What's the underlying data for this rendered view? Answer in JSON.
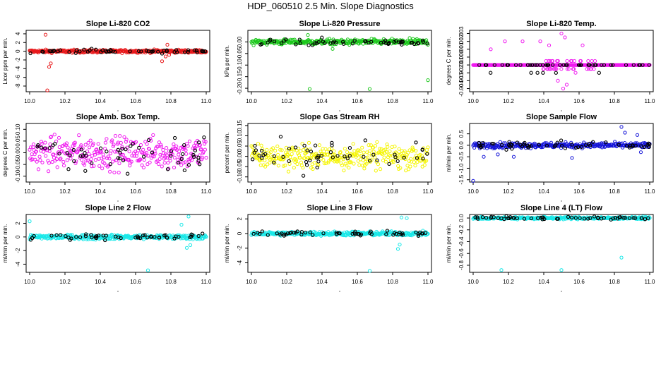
{
  "figure": {
    "title": "HDP_060510  2.5 Min. Slope Diagnostics"
  },
  "colors": {
    "ref": "#000000"
  },
  "chart_data": [
    {
      "id": "co2",
      "type": "scatter",
      "title": "Slope Li-820 CO2",
      "ylabel": "Licor ppm per min.",
      "color": "#e8191b",
      "xlim": [
        9.98,
        11.02
      ],
      "ylim": [
        -9.3,
        4.8
      ],
      "xticks": [
        "10.0",
        "10.2",
        "10.4",
        "10.6",
        "10.8",
        "11.0"
      ],
      "yticks": [
        {
          "v": 4,
          "label": "4"
        },
        {
          "v": 2,
          "label": "2"
        },
        {
          "v": 0,
          "label": "0"
        },
        {
          "v": -2,
          "label": "-2"
        },
        {
          "v": -4,
          "label": "-4"
        },
        {
          "v": -6,
          "label": "-6"
        },
        {
          "v": -8,
          "label": "-8"
        }
      ],
      "band_center": 0.0,
      "band_spread": 0.35,
      "outliers": [
        [
          10.09,
          3.8
        ],
        [
          10.1,
          -9.0
        ],
        [
          10.11,
          -3.6
        ],
        [
          10.12,
          -2.8
        ],
        [
          10.75,
          -2.3
        ],
        [
          10.77,
          -1.2
        ],
        [
          10.78,
          1.5
        ],
        [
          10.79,
          -0.8
        ]
      ]
    },
    {
      "id": "pressure",
      "type": "scatter",
      "title": "Slope Li-820 Pressure",
      "ylabel": "kPa per min.",
      "color": "#1dc81d",
      "xlim": [
        9.98,
        11.02
      ],
      "ylim": [
        -0.215,
        0.05
      ],
      "xticks": [
        "10.0",
        "10.2",
        "10.4",
        "10.6",
        "10.8",
        "11.0"
      ],
      "yticks": [
        {
          "v": 0,
          "label": "0.00"
        },
        {
          "v": -0.05,
          "label": "-0.05"
        },
        {
          "v": -0.1,
          "label": "-0.10"
        },
        {
          "v": -0.15,
          "label": "-0.15"
        },
        {
          "v": -0.2,
          "label": "-0.20"
        }
      ],
      "band_center": 0.0,
      "band_spread": 0.012,
      "outliers": [
        [
          10.33,
          -0.203
        ],
        [
          10.67,
          -0.203
        ],
        [
          11.0,
          -0.165
        ],
        [
          10.32,
          0.03
        ],
        [
          10.46,
          -0.03
        ]
      ]
    },
    {
      "id": "temp",
      "type": "scatter",
      "title": "Slope Li-820 Temp.",
      "ylabel": "degrees C per min.",
      "color": "#f019f0",
      "xlim": [
        9.98,
        11.02
      ],
      "ylim": [
        -0.0044,
        0.0034
      ],
      "xticks": [
        "10.0",
        "10.2",
        "10.4",
        "10.6",
        "10.8",
        "11.0"
      ],
      "yticks": [
        {
          "v": 0.003,
          "label": "0.003"
        },
        {
          "v": 0.002,
          "label": "0.002"
        },
        {
          "v": 0.001,
          "label": "0.001"
        },
        {
          "v": 0,
          "label": "0.000"
        },
        {
          "v": -0.001,
          "label": "-0.001"
        },
        {
          "v": -0.002,
          "label": "-0.002"
        },
        {
          "v": -0.003,
          "label": "-0.003"
        },
        {
          "v": -0.004,
          "label": "-0.004"
        }
      ],
      "band_center": -0.001,
      "band_spread": 0.0,
      "quantized_step": 0.0005,
      "outliers": [
        [
          10.1,
          0.001
        ],
        [
          10.18,
          0.002
        ],
        [
          10.28,
          0.002
        ],
        [
          10.38,
          0.002
        ],
        [
          10.43,
          0.0015
        ],
        [
          10.5,
          0.003
        ],
        [
          10.51,
          -0.004
        ],
        [
          10.52,
          0.0025
        ],
        [
          10.48,
          -0.003
        ],
        [
          10.53,
          -0.0035
        ],
        [
          10.58,
          -0.002
        ],
        [
          10.62,
          0.0015
        ]
      ]
    },
    {
      "id": "ambbox",
      "type": "scatter",
      "title": "Slope Amb. Box Temp.",
      "ylabel": "degrees C per min.",
      "color": "#f019f0",
      "xlim": [
        9.98,
        11.02
      ],
      "ylim": [
        -0.125,
        0.125
      ],
      "xticks": [
        "10.0",
        "10.2",
        "10.4",
        "10.6",
        "10.8",
        "11.0"
      ],
      "yticks": [
        {
          "v": 0.1,
          "label": "0.10"
        },
        {
          "v": 0.05,
          "label": "0.05"
        },
        {
          "v": 0,
          "label": "0.00"
        },
        {
          "v": -0.05,
          "label": "-0.05"
        },
        {
          "v": -0.1,
          "label": "-0.10"
        }
      ],
      "band_center": 0.0,
      "band_spread": 0.07,
      "outliers": []
    },
    {
      "id": "rh",
      "type": "scatter",
      "title": "Slope Gas Stream RH",
      "ylabel": "percent per min.",
      "color": "#f5f500",
      "xlim": [
        9.98,
        11.02
      ],
      "ylim": [
        -0.125,
        0.16
      ],
      "xticks": [
        "10.0",
        "10.2",
        "10.4",
        "10.6",
        "10.8",
        "11.0"
      ],
      "yticks": [
        {
          "v": 0.15,
          "label": "0.15"
        },
        {
          "v": 0.1,
          "label": "0.10"
        },
        {
          "v": 0.05,
          "label": "0.05"
        },
        {
          "v": 0,
          "label": "0.00"
        },
        {
          "v": -0.05,
          "label": "-0.05"
        },
        {
          "v": -0.1,
          "label": "-0.10"
        }
      ],
      "band_center": 0.0,
      "band_spread": 0.06,
      "outliers": []
    },
    {
      "id": "sampleflow",
      "type": "scatter",
      "title": "Slope Sample Flow",
      "ylabel": "ml/min per min.",
      "color": "#1515d8",
      "xlim": [
        9.98,
        11.02
      ],
      "ylim": [
        -1.6,
        0.95
      ],
      "xticks": [
        "10.0",
        "10.2",
        "10.4",
        "10.6",
        "10.8",
        "11.0"
      ],
      "yticks": [
        {
          "v": 0.5,
          "label": "0.5"
        },
        {
          "v": 0,
          "label": "0.0"
        },
        {
          "v": -0.5,
          "label": "-0.5"
        },
        {
          "v": -1.0,
          "label": "-1.0"
        },
        {
          "v": -1.5,
          "label": "-1.5"
        }
      ],
      "band_center": 0.0,
      "band_spread": 0.12,
      "outliers": [
        [
          10.0,
          -1.55
        ],
        [
          10.06,
          -0.5
        ],
        [
          10.14,
          -0.4
        ],
        [
          10.23,
          -0.5
        ],
        [
          10.56,
          -0.55
        ],
        [
          10.84,
          0.8
        ],
        [
          10.86,
          0.55
        ],
        [
          10.93,
          0.45
        ],
        [
          10.95,
          -0.3
        ]
      ]
    },
    {
      "id": "line2",
      "type": "scatter",
      "title": "Slope Line 2 Flow",
      "ylabel": "ml/min per min.",
      "color": "#19e8e8",
      "xlim": [
        9.98,
        11.02
      ],
      "ylim": [
        -5.2,
        3.3
      ],
      "xticks": [
        "10.0",
        "10.2",
        "10.4",
        "10.6",
        "10.8",
        "11.0"
      ],
      "yticks": [
        {
          "v": 2,
          "label": "2"
        },
        {
          "v": 0,
          "label": "0"
        },
        {
          "v": -2,
          "label": "-2"
        },
        {
          "v": -4,
          "label": "-4"
        }
      ],
      "band_center": 0.0,
      "band_spread": 0.35,
      "outliers": [
        [
          10.0,
          2.3
        ],
        [
          10.67,
          -4.9
        ],
        [
          10.9,
          3.0
        ],
        [
          10.91,
          -1.2
        ],
        [
          10.89,
          -1.6
        ],
        [
          10.86,
          1.8
        ]
      ]
    },
    {
      "id": "line3",
      "type": "scatter",
      "title": "Slope Line 3 Flow",
      "ylabel": "ml/min per min.",
      "color": "#19e8e8",
      "xlim": [
        9.98,
        11.02
      ],
      "ylim": [
        -5.3,
        2.6
      ],
      "xticks": [
        "10.0",
        "10.2",
        "10.4",
        "10.6",
        "10.8",
        "11.0"
      ],
      "yticks": [
        {
          "v": 2,
          "label": "2"
        },
        {
          "v": 0,
          "label": "0"
        },
        {
          "v": -2,
          "label": "-2"
        },
        {
          "v": -4,
          "label": "-4"
        }
      ],
      "band_center": 0.0,
      "band_spread": 0.3,
      "outliers": [
        [
          10.67,
          -5.1
        ],
        [
          10.85,
          2.2
        ],
        [
          10.88,
          2.1
        ],
        [
          10.84,
          -1.5
        ],
        [
          10.83,
          -2.1
        ]
      ]
    },
    {
      "id": "line4",
      "type": "scatter",
      "title": "Slope Line 4 (LT) Flow",
      "ylabel": "ml/min per min.",
      "color": "#19e8e8",
      "xlim": [
        9.98,
        11.02
      ],
      "ylim": [
        -0.92,
        0.06
      ],
      "xticks": [
        "10.0",
        "10.2",
        "10.4",
        "10.6",
        "10.8",
        "11.0"
      ],
      "yticks": [
        {
          "v": 0,
          "label": "0.0"
        },
        {
          "v": -0.2,
          "label": "-0.2"
        },
        {
          "v": -0.4,
          "label": "-0.4"
        },
        {
          "v": -0.6,
          "label": "-0.6"
        },
        {
          "v": -0.8,
          "label": "-0.8"
        }
      ],
      "band_center": 0.0,
      "band_spread": 0.02,
      "outliers": [
        [
          10.16,
          -0.88
        ],
        [
          10.5,
          -0.88
        ],
        [
          10.84,
          -0.67
        ]
      ]
    }
  ]
}
